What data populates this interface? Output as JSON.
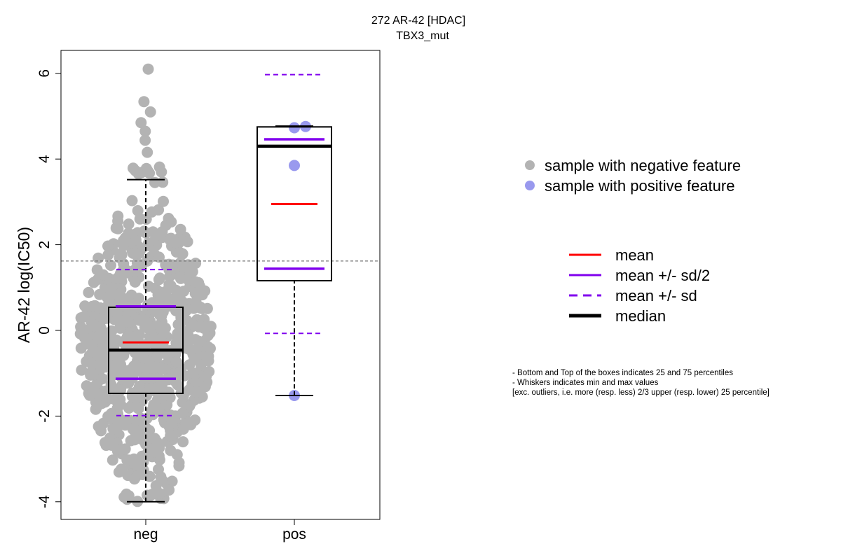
{
  "chart_data": {
    "type": "boxplot-beeswarm",
    "title": "272 AR-42 [HDAC]",
    "subtitle": "TBX3_mut",
    "ylabel": "AR-42 log(IC50)",
    "xlabel": "",
    "ylim": [
      -4.4,
      6.5
    ],
    "yticks": [
      -4,
      -2,
      0,
      2,
      4,
      6
    ],
    "ytick_labels": [
      "-4",
      "-2",
      "0",
      "2",
      "4",
      "6"
    ],
    "categories": [
      "neg",
      "pos"
    ],
    "reference_line_y": 1.62,
    "groups": [
      {
        "name": "neg",
        "n_points": 700,
        "color": "#b3b3b3",
        "whisker_low": -4.0,
        "q1": -1.47,
        "median": -0.46,
        "q3": 0.54,
        "whisker_high": 3.52,
        "mean": -0.28,
        "mean_minus_half_sd": -1.13,
        "mean_plus_half_sd": 0.56,
        "mean_minus_sd": -1.99,
        "mean_plus_sd": 1.42,
        "max_point": 6.1,
        "min_point": -4.0
      },
      {
        "name": "pos",
        "color": "#9999ee",
        "points": [
          -1.52,
          3.85,
          4.73,
          4.76
        ],
        "whisker_low": -1.52,
        "q1": 1.16,
        "median": 4.3,
        "q3": 4.75,
        "whisker_high": 4.77,
        "mean": 2.95,
        "mean_minus_half_sd": 1.44,
        "mean_plus_half_sd": 4.46,
        "mean_minus_sd": -0.07,
        "mean_plus_sd": 5.97
      }
    ],
    "legend_points": [
      {
        "label": "sample with negative feature",
        "color": "#b3b3b3"
      },
      {
        "label": "sample with positive feature",
        "color": "#9999ee"
      }
    ],
    "legend_lines": [
      {
        "label": "mean",
        "color": "#ff0000",
        "style": "solid"
      },
      {
        "label": "mean +/- sd/2",
        "color": "#8000ee",
        "style": "solid"
      },
      {
        "label": "mean +/- sd",
        "color": "#8000ee",
        "style": "dashed"
      },
      {
        "label": "median",
        "color": "#000000",
        "style": "thick"
      }
    ],
    "notes": [
      "- Bottom and Top of the boxes indicates 25 and 75 percentiles",
      "- Whiskers indicates min and max values",
      "[exc. outliers, i.e. more (resp. less) 2/3 upper (resp. lower) 25 percentile]"
    ],
    "grid": false
  }
}
